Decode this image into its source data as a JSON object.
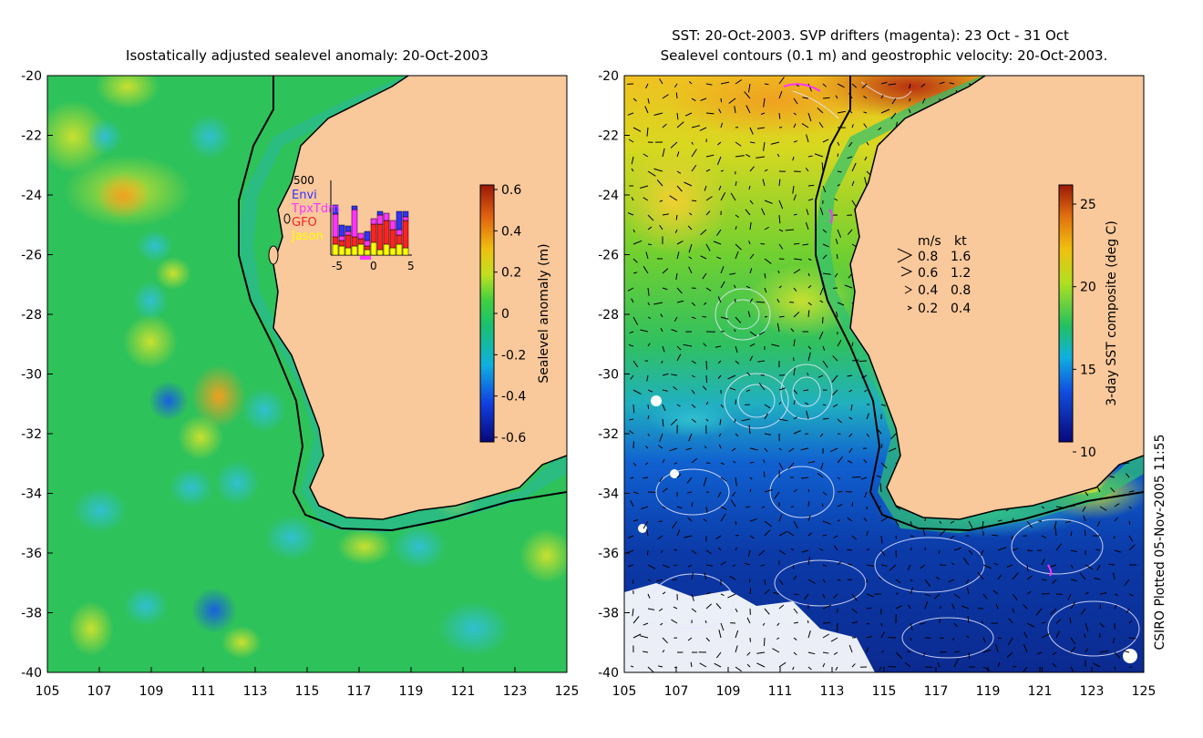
{
  "left_panel": {
    "title": "Isostatically adjusted sealevel anomaly: 20-Oct-2003",
    "x_ticks": [
      "105",
      "107",
      "109",
      "111",
      "113",
      "115",
      "117",
      "119",
      "121",
      "123",
      "125"
    ],
    "y_ticks": [
      "-20",
      "-22",
      "-24",
      "-26",
      "-28",
      "-30",
      "-32",
      "-34",
      "-36",
      "-38",
      "-40"
    ],
    "colorbar": {
      "label": "Sealevel anomaly (m)",
      "ticks": [
        "0.6",
        "0.4",
        "0.2",
        "0",
        "-0.2",
        "-0.4",
        "-0.6"
      ]
    },
    "inset": {
      "top_label": "500",
      "legend": [
        {
          "name": "Envi",
          "color": "#3333ff"
        },
        {
          "name": "TpxTdm",
          "color": "#ff33ff"
        },
        {
          "name": "GFO",
          "color": "#ff2222"
        },
        {
          "name": "Jason",
          "color": "#ffff00"
        }
      ],
      "x_ticks": [
        "-5",
        "0",
        "5"
      ]
    }
  },
  "right_panel": {
    "title_line1": "SST: 20-Oct-2003. SVP drifters (magenta): 23 Oct - 31 Oct",
    "title_line2": "Sealevel contours (0.1 m) and geostrophic velocity: 20-Oct-2003.",
    "x_ticks": [
      "105",
      "107",
      "109",
      "111",
      "113",
      "115",
      "117",
      "119",
      "121",
      "123",
      "125"
    ],
    "y_ticks": [
      "-20",
      "-22",
      "-24",
      "-26",
      "-28",
      "-30",
      "-32",
      "-34",
      "-36",
      "-38",
      "-40"
    ],
    "velocity_legend": {
      "header_ms": "m/s",
      "header_kt": "kt",
      "rows": [
        {
          "ms": "0.8",
          "kt": "1.6"
        },
        {
          "ms": "0.6",
          "kt": "1.2"
        },
        {
          "ms": "0.4",
          "kt": "0.8"
        },
        {
          "ms": "0.2",
          "kt": "0.4"
        }
      ]
    },
    "colorbar": {
      "label": "3-day SST composite (deg C)",
      "ticks": [
        "25",
        "20",
        "15",
        "10"
      ]
    }
  },
  "credit": "CSIRO Plotted 05-Nov-2005 11:55",
  "colors": {
    "land": "#f9c89b",
    "ssh_base": "#2ec25a",
    "sst_cold": "#0b2fa0"
  }
}
